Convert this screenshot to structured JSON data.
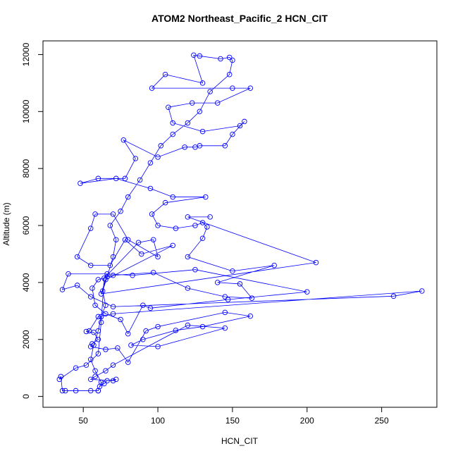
{
  "chart_data": {
    "type": "line",
    "title": "ATOM2 Northeast_Pacific_2 HCN_CIT",
    "x_label": "HCN_CIT",
    "y_label": "Altitude (m)",
    "color": "#0000ff",
    "markers": true,
    "x": [
      60,
      62,
      58,
      55,
      57,
      60,
      62,
      65,
      63,
      66,
      70,
      72,
      68,
      75,
      80,
      88,
      95,
      102,
      110,
      120,
      128,
      135,
      148,
      150,
      148,
      142,
      128,
      124,
      130,
      105,
      96,
      150,
      162,
      140,
      123,
      107,
      110,
      130,
      155,
      158,
      150,
      145,
      128,
      125,
      118,
      100,
      77,
      85,
      78,
      60,
      48,
      72,
      95,
      110,
      132,
      105,
      96,
      100,
      112,
      125,
      130,
      133,
      130,
      120,
      150,
      178,
      140,
      155,
      163,
      145,
      120,
      97,
      70,
      60,
      56,
      58,
      65,
      75,
      80,
      90,
      95,
      147,
      200,
      125,
      83,
      66,
      40,
      36,
      46,
      55,
      70,
      258,
      277,
      70,
      60,
      54,
      52,
      57,
      60,
      56,
      55,
      65,
      73,
      80,
      92,
      100,
      145,
      162,
      130,
      112,
      90,
      82,
      100,
      145,
      120,
      70,
      65,
      58,
      55,
      70,
      72,
      66,
      64,
      61,
      60,
      55,
      45,
      38,
      36,
      35,
      34,
      45,
      52,
      60,
      62,
      64,
      87,
      97,
      100,
      80,
      70,
      58,
      55,
      46,
      55,
      68,
      78,
      89,
      110,
      65,
      62,
      206,
      120,
      135
    ],
    "values": [
      200,
      500,
      900,
      1300,
      1800,
      2300,
      2800,
      3200,
      3700,
      4200,
      4900,
      5500,
      6000,
      6500,
      7000,
      7600,
      8200,
      8800,
      9200,
      9600,
      10000,
      10700,
      11300,
      11800,
      11900,
      11850,
      11950,
      11980,
      11000,
      11300,
      10820,
      10820,
      10820,
      10300,
      10300,
      10150,
      9600,
      9300,
      9500,
      9650,
      9200,
      8800,
      8800,
      8750,
      8750,
      8400,
      9000,
      8350,
      7650,
      7650,
      7480,
      7650,
      7300,
      7000,
      7000,
      6800,
      6400,
      6000,
      5900,
      6000,
      6100,
      5950,
      5550,
      4900,
      4400,
      4600,
      4000,
      3950,
      3450,
      3500,
      3800,
      4350,
      4250,
      4100,
      3800,
      3200,
      2900,
      2700,
      2200,
      3200,
      3100,
      3400,
      3670,
      4450,
      4250,
      4300,
      4300,
      3750,
      3900,
      3500,
      3150,
      3520,
      3700,
      2900,
      2800,
      2300,
      2280,
      2250,
      2000,
      1850,
      1750,
      1650,
      1700,
      1200,
      2300,
      2450,
      2950,
      2820,
      2450,
      2320,
      2000,
      1800,
      1750,
      2400,
      2500,
      1100,
      900,
      700,
      600,
      550,
      600,
      550,
      450,
      350,
      200,
      200,
      200,
      200,
      200,
      700,
      600,
      1000,
      1100,
      1500,
      2600,
      4150,
      5400,
      5500,
      4900,
      5500,
      6400,
      6400,
      5900,
      4900,
      4600,
      4600,
      5500,
      5000,
      5300,
      4100,
      3600,
      4700,
      6300,
      6300
    ],
    "xlim": [
      23,
      287
    ],
    "ylim": [
      -380,
      12480
    ],
    "xticks": [
      50,
      100,
      150,
      200,
      250
    ],
    "yticks": [
      0,
      2000,
      4000,
      6000,
      8000,
      10000,
      12000
    ]
  }
}
